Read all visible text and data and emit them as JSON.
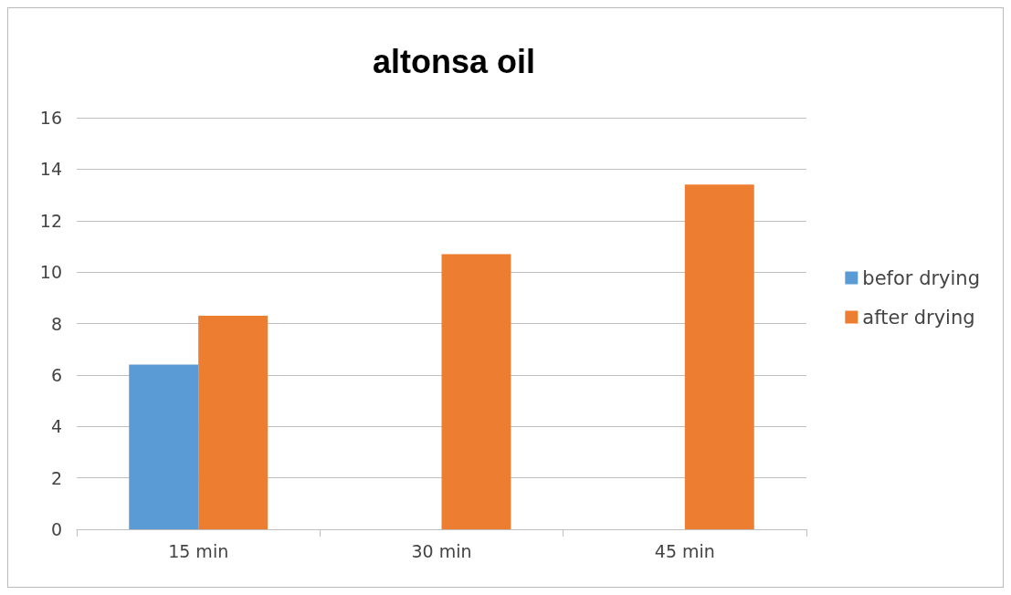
{
  "chart_data": {
    "type": "bar",
    "title": "altonsa oil",
    "categories": [
      "15 min",
      "30 min",
      "45 min"
    ],
    "series": [
      {
        "name": "befor drying",
        "color": "#5b9bd5",
        "values": [
          6.4,
          null,
          null
        ]
      },
      {
        "name": "after drying",
        "color": "#ed7d31",
        "values": [
          8.3,
          10.7,
          13.4
        ]
      }
    ],
    "ylim": [
      0,
      16
    ],
    "yticks": [
      0,
      2,
      4,
      6,
      8,
      10,
      12,
      14,
      16
    ],
    "grid": "y",
    "legend": "right"
  }
}
